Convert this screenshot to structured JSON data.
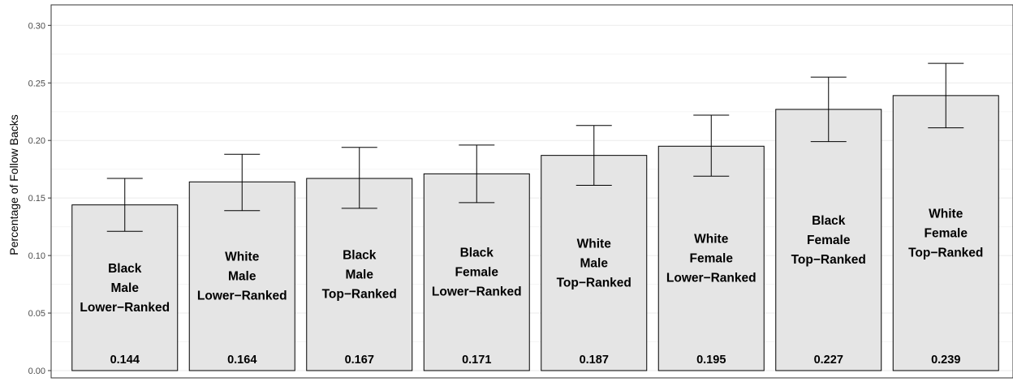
{
  "chart_data": {
    "type": "bar",
    "title": "",
    "xlabel": "",
    "ylabel": "Percentage of Follow Backs",
    "ylim": [
      0,
      0.3
    ],
    "yticks": [
      "0.00",
      "0.05",
      "0.10",
      "0.15",
      "0.20",
      "0.25",
      "0.30"
    ],
    "grid": true,
    "categories": [
      [
        "Black",
        "Male",
        "Lower−Ranked"
      ],
      [
        "White",
        "Male",
        "Lower−Ranked"
      ],
      [
        "Black",
        "Male",
        "Top−Ranked"
      ],
      [
        "Black",
        "Female",
        "Lower−Ranked"
      ],
      [
        "White",
        "Male",
        "Top−Ranked"
      ],
      [
        "White",
        "Female",
        "Lower−Ranked"
      ],
      [
        "Black",
        "Female",
        "Top−Ranked"
      ],
      [
        "White",
        "Female",
        "Top−Ranked"
      ]
    ],
    "values": [
      0.144,
      0.164,
      0.167,
      0.171,
      0.187,
      0.195,
      0.227,
      0.239
    ],
    "value_labels": [
      "0.144",
      "0.164",
      "0.167",
      "0.171",
      "0.187",
      "0.195",
      "0.227",
      "0.239"
    ],
    "error_low": [
      0.121,
      0.139,
      0.141,
      0.146,
      0.161,
      0.169,
      0.199,
      0.211
    ],
    "error_high": [
      0.167,
      0.188,
      0.194,
      0.196,
      0.213,
      0.222,
      0.255,
      0.267
    ],
    "colors": {
      "bar_fill": "#e5e5e5",
      "bar_stroke": "#000000",
      "grid_major": "#ebebeb",
      "grid_minor": "#f5f5f5",
      "panel_border": "#333333",
      "tick_label": "#4d4d4d"
    }
  }
}
